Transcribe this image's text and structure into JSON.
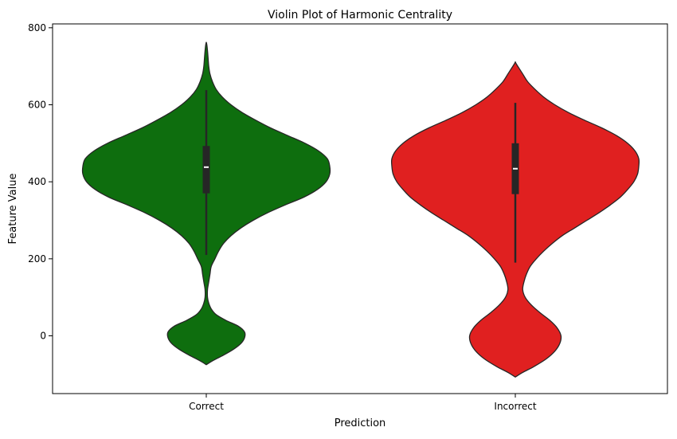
{
  "chart_data": {
    "type": "violin",
    "title": "Violin Plot of Harmonic Centrality",
    "xlabel": "Prediction",
    "ylabel": "Feature Value",
    "categories": [
      "Correct",
      "Incorrect"
    ],
    "ylim": [
      -150,
      810
    ],
    "yticks": [
      0,
      200,
      400,
      600,
      800
    ],
    "grid": false,
    "colors": {
      "Correct": "#0e6e0e",
      "Incorrect": "#e02020",
      "outline": "#262626"
    },
    "violins": [
      {
        "category": "Correct",
        "color": "#0e6e0e",
        "quartiles": {
          "q1": 370,
          "median": 438,
          "q3": 493
        },
        "whisker": [
          210,
          638
        ],
        "density": [
          [
            -75,
            0.0
          ],
          [
            -65,
            0.05
          ],
          [
            -50,
            0.14
          ],
          [
            -35,
            0.22
          ],
          [
            -20,
            0.28
          ],
          [
            -5,
            0.31
          ],
          [
            10,
            0.31
          ],
          [
            25,
            0.26
          ],
          [
            40,
            0.16
          ],
          [
            55,
            0.08
          ],
          [
            70,
            0.04
          ],
          [
            85,
            0.02
          ],
          [
            100,
            0.01
          ],
          [
            120,
            0.01
          ],
          [
            140,
            0.02
          ],
          [
            160,
            0.03
          ],
          [
            180,
            0.04
          ],
          [
            200,
            0.07
          ],
          [
            220,
            0.1
          ],
          [
            240,
            0.14
          ],
          [
            260,
            0.2
          ],
          [
            280,
            0.28
          ],
          [
            300,
            0.38
          ],
          [
            320,
            0.5
          ],
          [
            340,
            0.64
          ],
          [
            360,
            0.79
          ],
          [
            380,
            0.9
          ],
          [
            400,
            0.97
          ],
          [
            420,
            1.0
          ],
          [
            440,
            1.0
          ],
          [
            460,
            0.98
          ],
          [
            480,
            0.91
          ],
          [
            500,
            0.8
          ],
          [
            520,
            0.66
          ],
          [
            540,
            0.52
          ],
          [
            560,
            0.4
          ],
          [
            580,
            0.29
          ],
          [
            600,
            0.2
          ],
          [
            620,
            0.13
          ],
          [
            640,
            0.08
          ],
          [
            660,
            0.05
          ],
          [
            680,
            0.03
          ],
          [
            700,
            0.02
          ],
          [
            720,
            0.015
          ],
          [
            740,
            0.01
          ],
          [
            755,
            0.005
          ],
          [
            763,
            0.0
          ]
        ]
      },
      {
        "category": "Incorrect",
        "color": "#e02020",
        "quartiles": {
          "q1": 368,
          "median": 434,
          "q3": 500
        },
        "whisker": [
          190,
          605
        ],
        "density": [
          [
            -107,
            0.0
          ],
          [
            -95,
            0.06
          ],
          [
            -80,
            0.15
          ],
          [
            -60,
            0.25
          ],
          [
            -40,
            0.32
          ],
          [
            -20,
            0.36
          ],
          [
            0,
            0.37
          ],
          [
            20,
            0.34
          ],
          [
            40,
            0.28
          ],
          [
            60,
            0.2
          ],
          [
            80,
            0.13
          ],
          [
            100,
            0.08
          ],
          [
            120,
            0.06
          ],
          [
            140,
            0.07
          ],
          [
            160,
            0.09
          ],
          [
            180,
            0.12
          ],
          [
            200,
            0.17
          ],
          [
            220,
            0.23
          ],
          [
            240,
            0.3
          ],
          [
            260,
            0.38
          ],
          [
            280,
            0.48
          ],
          [
            300,
            0.58
          ],
          [
            320,
            0.68
          ],
          [
            340,
            0.77
          ],
          [
            360,
            0.85
          ],
          [
            380,
            0.91
          ],
          [
            400,
            0.96
          ],
          [
            420,
            0.99
          ],
          [
            440,
            1.0
          ],
          [
            460,
            1.0
          ],
          [
            480,
            0.97
          ],
          [
            500,
            0.91
          ],
          [
            520,
            0.82
          ],
          [
            540,
            0.7
          ],
          [
            560,
            0.56
          ],
          [
            580,
            0.43
          ],
          [
            600,
            0.32
          ],
          [
            620,
            0.23
          ],
          [
            640,
            0.16
          ],
          [
            660,
            0.1
          ],
          [
            680,
            0.06
          ],
          [
            695,
            0.03
          ],
          [
            705,
            0.01
          ],
          [
            711,
            0.0
          ]
        ]
      }
    ]
  }
}
